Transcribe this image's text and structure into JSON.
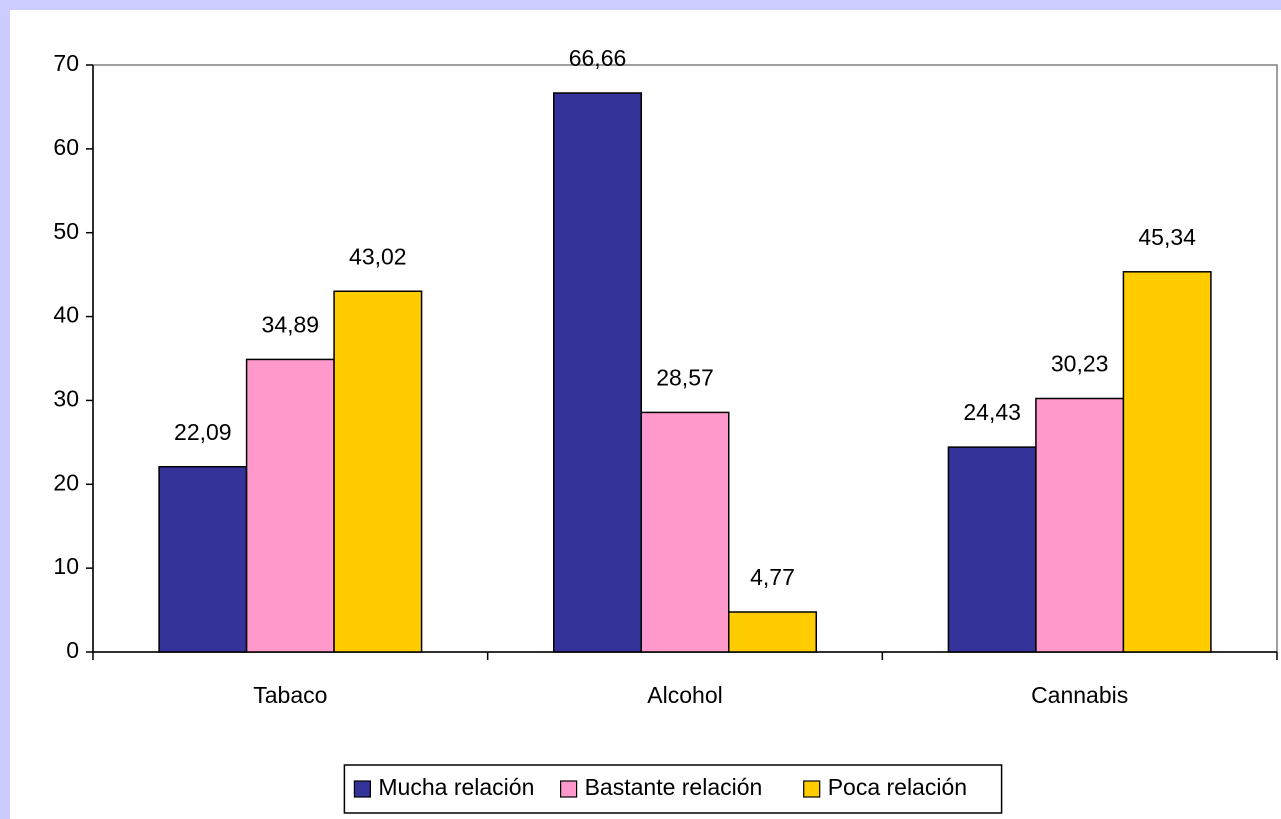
{
  "chart_data": {
    "type": "bar",
    "categories": [
      "Tabaco",
      "Alcohol",
      "Cannabis"
    ],
    "series": [
      {
        "name": "Mucha relación",
        "color": "#333399",
        "values": [
          22.09,
          66.66,
          24.43
        ],
        "value_labels": [
          "22,09",
          "66,66",
          "24,43"
        ]
      },
      {
        "name": "Bastante relación",
        "color": "#ff99cc",
        "values": [
          34.89,
          28.57,
          30.23
        ],
        "value_labels": [
          "34,89",
          "28,57",
          "30,23"
        ]
      },
      {
        "name": "Poca relación",
        "color": "#ffcc00",
        "values": [
          43.02,
          4.77,
          45.34
        ],
        "value_labels": [
          "43,02",
          "4,77",
          "45,34"
        ]
      }
    ],
    "ylim": [
      0,
      70
    ],
    "yticks": [
      0,
      10,
      20,
      30,
      40,
      50,
      60,
      70
    ],
    "grid": false,
    "legend": "bottom"
  }
}
